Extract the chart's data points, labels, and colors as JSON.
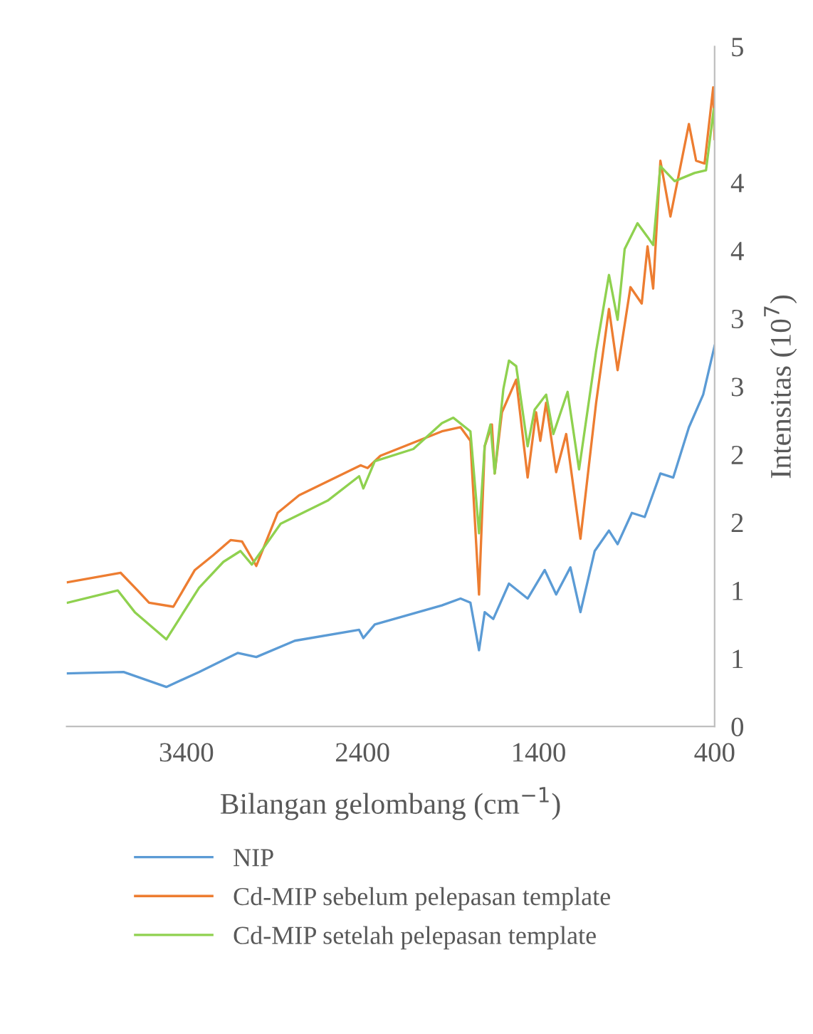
{
  "chart_data": {
    "type": "line",
    "xlabel": "Bilangan gelombang (cm$^{−1}$)",
    "ylabel": "Intensitas (10$^{7}$)",
    "xlim": [
      4080,
      400
    ],
    "xticks": [
      3400,
      2400,
      1400,
      400
    ],
    "ylim": [
      0,
      5
    ],
    "yticks": [
      0,
      {
        "value": 0.5,
        "label": "1"
      },
      1,
      {
        "value": 1.5,
        "label": "2"
      },
      2,
      {
        "value": 2.5,
        "label": "3"
      },
      3,
      {
        "value": 3.5,
        "label": "4"
      },
      4,
      5
    ],
    "grid": false,
    "legend": "bottom",
    "line_style": "solid",
    "marker": "none",
    "series": [
      {
        "name": "NIP",
        "color": "#5b9bd5",
        "x": [
          4074,
          3757,
          3514,
          3328,
          3109,
          3003,
          2784,
          2419,
          2395,
          2330,
          1949,
          1843,
          1787,
          1738,
          1706,
          1657,
          1568,
          1462,
          1365,
          1300,
          1219,
          1162,
          1081,
          1000,
          951,
          870,
          797,
          708,
          635,
          546,
          465,
          400
        ],
        "values": [
          0.39,
          0.4,
          0.29,
          0.4,
          0.54,
          0.51,
          0.63,
          0.71,
          0.65,
          0.75,
          0.89,
          0.94,
          0.91,
          0.56,
          0.84,
          0.79,
          1.05,
          0.94,
          1.15,
          0.97,
          1.17,
          0.84,
          1.29,
          1.44,
          1.34,
          1.57,
          1.54,
          1.86,
          1.83,
          2.2,
          2.44,
          2.8
        ]
      },
      {
        "name": "Cd-MIP sebelum pelepasan template",
        "color": "#ed7d31",
        "x": [
          4074,
          3774,
          3677,
          3612,
          3474,
          3352,
          3247,
          3149,
          3084,
          3003,
          2882,
          2760,
          2411,
          2371,
          2298,
          1949,
          1843,
          1787,
          1738,
          1706,
          1665,
          1649,
          1608,
          1527,
          1462,
          1414,
          1390,
          1357,
          1300,
          1243,
          1162,
          1073,
          1000,
          951,
          878,
          814,
          781,
          749,
          708,
          651,
          546,
          505,
          457,
          408,
          400
        ],
        "values": [
          1.06,
          1.13,
          1.0,
          0.91,
          0.88,
          1.15,
          1.26,
          1.37,
          1.36,
          1.18,
          1.57,
          1.7,
          1.92,
          1.9,
          1.99,
          2.17,
          2.2,
          2.1,
          0.97,
          2.06,
          2.22,
          1.86,
          2.31,
          2.55,
          1.83,
          2.31,
          2.1,
          2.38,
          1.87,
          2.15,
          1.38,
          2.38,
          3.07,
          2.62,
          3.23,
          3.11,
          3.53,
          3.22,
          4.16,
          3.75,
          4.43,
          4.16,
          4.14,
          4.7,
          4.32
        ]
      },
      {
        "name": "Cd-MIP setelah pelepasan template",
        "color": "#8fd14f",
        "x": [
          4074,
          3790,
          3693,
          3514,
          3328,
          3190,
          3093,
          3028,
          2865,
          2598,
          2419,
          2395,
          2330,
          2111,
          1949,
          1884,
          1787,
          1738,
          1706,
          1673,
          1649,
          1600,
          1568,
          1527,
          1462,
          1422,
          1357,
          1316,
          1235,
          1170,
          1073,
          1000,
          951,
          911,
          838,
          781,
          749,
          708,
          627,
          514,
          449,
          405,
          400
        ],
        "values": [
          0.91,
          1.0,
          0.84,
          0.64,
          1.02,
          1.21,
          1.29,
          1.19,
          1.49,
          1.66,
          1.84,
          1.75,
          1.95,
          2.04,
          2.23,
          2.27,
          2.17,
          1.42,
          2.06,
          2.22,
          1.86,
          2.48,
          2.69,
          2.65,
          2.06,
          2.33,
          2.44,
          2.15,
          2.46,
          1.89,
          2.76,
          3.32,
          2.99,
          3.51,
          3.7,
          3.6,
          3.54,
          4.12,
          4.01,
          4.07,
          4.09,
          4.54,
          4.4
        ]
      }
    ]
  }
}
